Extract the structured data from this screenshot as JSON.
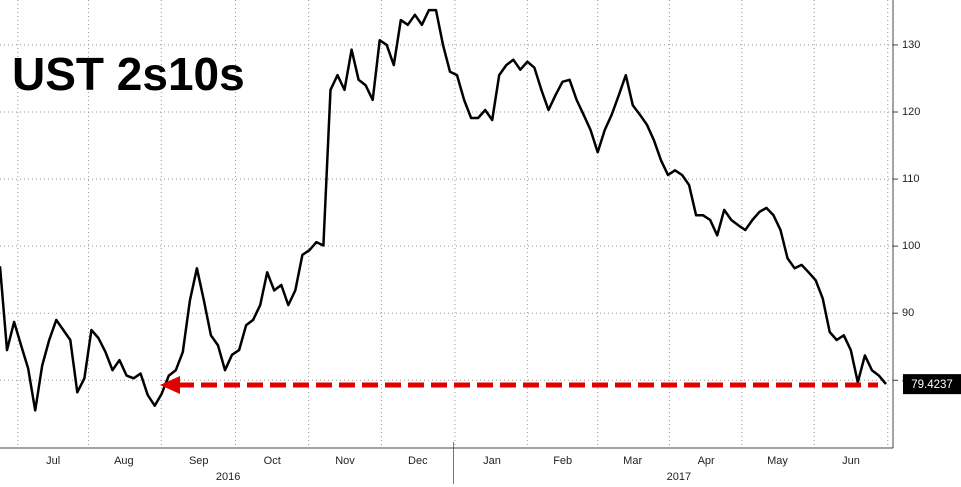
{
  "chart_data": {
    "type": "line",
    "title": "UST 2s10s",
    "series": [
      {
        "name": "UST 2s10s",
        "color": "#000000",
        "values": [
          97,
          84.5,
          88.7,
          85.2,
          81.8,
          75.5,
          82.2,
          86,
          89,
          87.5,
          86,
          78.2,
          80.3,
          87.5,
          86.3,
          84.2,
          81.5,
          83,
          80.7,
          80.3,
          81,
          77.8,
          76.2,
          78,
          80.7,
          81.5,
          84.2,
          91.9,
          96.7,
          91.9,
          86.7,
          85.2,
          81.5,
          83.8,
          84.5,
          88.2,
          89,
          91.2,
          96.1,
          93.4,
          94.2,
          91.2,
          93.4,
          98.7,
          99.4,
          100.6,
          100.1,
          123.3,
          125.5,
          123.3,
          129.3,
          124.8,
          124,
          121.8,
          130.7,
          130,
          127,
          133.7,
          133,
          134.5,
          133,
          135.2,
          135.2,
          130,
          126,
          125.5,
          121.8,
          119.1,
          119.1,
          120.3,
          118.8,
          125.5,
          127,
          127.8,
          126.3,
          127.5,
          126.6,
          123.3,
          120.3,
          122.5,
          124.5,
          124.8,
          121.8,
          119.6,
          117.3,
          114,
          117.3,
          119.6,
          122.5,
          125.5,
          121,
          119.6,
          118.1,
          115.8,
          112.8,
          110.6,
          111.3,
          110.6,
          109.1,
          104.6,
          104.6,
          103.9,
          101.6,
          105.4,
          103.9,
          103.1,
          102.4,
          103.9,
          105.1,
          105.7,
          104.6,
          102.4,
          98.2,
          96.7,
          97.2,
          96.1,
          94.9,
          92.2,
          87.2,
          86,
          86.7,
          84.5,
          79.7,
          83.7,
          81.5,
          80.7,
          79.4237
        ]
      }
    ],
    "xlim": [
      0,
      127.6
    ],
    "xticks": [
      {
        "value": 7.6,
        "label": "Jul"
      },
      {
        "value": 17.7,
        "label": "Aug"
      },
      {
        "value": 28.4,
        "label": "Sep"
      },
      {
        "value": 38.9,
        "label": "Oct"
      },
      {
        "value": 49.3,
        "label": "Nov"
      },
      {
        "value": 59.7,
        "label": "Dec"
      },
      {
        "value": 70.3,
        "label": "Jan"
      },
      {
        "value": 80.4,
        "label": "Feb"
      },
      {
        "value": 90.4,
        "label": "Mar"
      },
      {
        "value": 100.9,
        "label": "Apr"
      },
      {
        "value": 111.1,
        "label": "May"
      },
      {
        "value": 121.6,
        "label": "Jun"
      }
    ],
    "year_ticks": [
      {
        "value": 32.6,
        "label": "2016"
      },
      {
        "value": 97,
        "label": "2017"
      }
    ],
    "ylim": [
      69.9,
      136.7
    ],
    "yticks": [
      80,
      90,
      100,
      110,
      120,
      130
    ],
    "grid": true,
    "y_axis_side": "right"
  }
}
